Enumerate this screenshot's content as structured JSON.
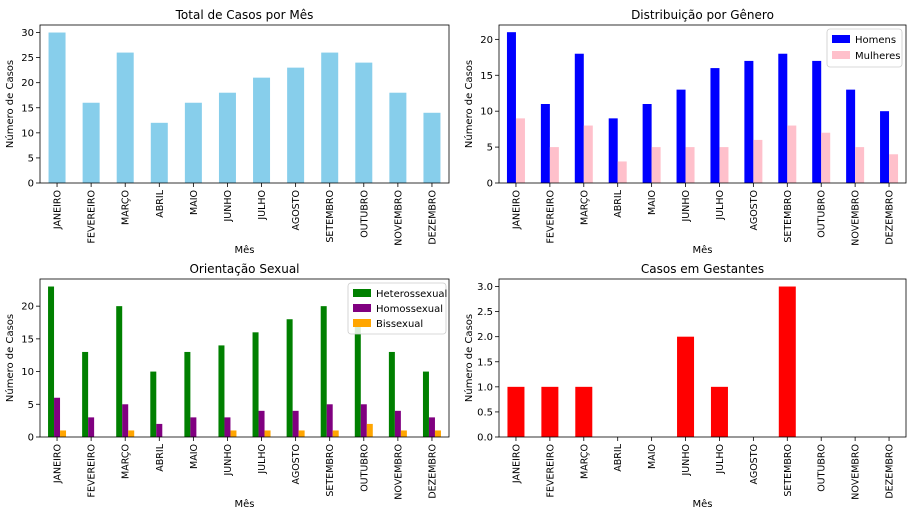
{
  "chart_data": [
    {
      "type": "bar",
      "title": "Total de Casos por Mês",
      "xlabel": "Mês",
      "ylabel": "Número de Casos",
      "categories": [
        "JANEIRO",
        "FEVEREIRO",
        "MARÇO",
        "ABRIL",
        "MAIO",
        "JUNHO",
        "JULHO",
        "AGOSTO",
        "SETEMBRO",
        "OUTUBRO",
        "NOVEMBRO",
        "DEZEMBRO"
      ],
      "series": [
        {
          "values": [
            30,
            16,
            26,
            12,
            16,
            18,
            21,
            23,
            26,
            24,
            18,
            14
          ],
          "color": "#87ceeb"
        }
      ],
      "ylim": [
        0,
        31.5
      ],
      "yticks": [
        0,
        5,
        10,
        15,
        20,
        25,
        30
      ],
      "legend": null
    },
    {
      "type": "bar",
      "title": "Distribuição por Gênero",
      "xlabel": "Mês",
      "ylabel": "Número de Casos",
      "categories": [
        "JANEIRO",
        "FEVEREIRO",
        "MARÇO",
        "ABRIL",
        "MAIO",
        "JUNHO",
        "JULHO",
        "AGOSTO",
        "SETEMBRO",
        "OUTUBRO",
        "NOVEMBRO",
        "DEZEMBRO"
      ],
      "series": [
        {
          "name": "Homens",
          "values": [
            21,
            11,
            18,
            9,
            11,
            13,
            16,
            17,
            18,
            17,
            13,
            10
          ],
          "color": "#0000ff"
        },
        {
          "name": "Mulheres",
          "values": [
            9,
            5,
            8,
            3,
            5,
            5,
            5,
            6,
            8,
            7,
            5,
            4
          ],
          "color": "#ffc0cb"
        }
      ],
      "ylim": [
        0,
        22
      ],
      "yticks": [
        0,
        5,
        10,
        15,
        20
      ],
      "legend": "top-right"
    },
    {
      "type": "bar",
      "title": "Orientação Sexual",
      "xlabel": "Mês",
      "ylabel": "Número de Casos",
      "categories": [
        "JANEIRO",
        "FEVEREIRO",
        "MARÇO",
        "ABRIL",
        "MAIO",
        "JUNHO",
        "JULHO",
        "AGOSTO",
        "SETEMBRO",
        "OUTUBRO",
        "NOVEMBRO",
        "DEZEMBRO"
      ],
      "series": [
        {
          "name": "Heterossexual",
          "values": [
            23,
            13,
            20,
            10,
            13,
            14,
            16,
            18,
            20,
            17,
            13,
            10
          ],
          "color": "#008000"
        },
        {
          "name": "Homossexual",
          "values": [
            6,
            3,
            5,
            2,
            3,
            3,
            4,
            4,
            5,
            5,
            4,
            3
          ],
          "color": "#800080"
        },
        {
          "name": "Bissexual",
          "values": [
            1,
            0,
            1,
            0,
            0,
            1,
            1,
            1,
            1,
            2,
            1,
            1
          ],
          "color": "#ffa500"
        }
      ],
      "ylim": [
        0,
        24.15
      ],
      "yticks": [
        0,
        5,
        10,
        15,
        20
      ],
      "legend": "top-right"
    },
    {
      "type": "bar",
      "title": "Casos em Gestantes",
      "xlabel": "Mês",
      "ylabel": "Número de Casos",
      "categories": [
        "JANEIRO",
        "FEVEREIRO",
        "MARÇO",
        "ABRIL",
        "MAIO",
        "JUNHO",
        "JULHO",
        "AGOSTO",
        "SETEMBRO",
        "OUTUBRO",
        "NOVEMBRO",
        "DEZEMBRO"
      ],
      "series": [
        {
          "values": [
            1,
            1,
            1,
            0,
            0,
            2,
            1,
            0,
            3,
            0,
            0,
            0
          ],
          "color": "#ff0000"
        }
      ],
      "ylim": [
        0,
        3.15
      ],
      "yticks": [
        "0.0",
        "0.5",
        "1.0",
        "1.5",
        "2.0",
        "2.5",
        "3.0"
      ],
      "legend": null
    }
  ]
}
